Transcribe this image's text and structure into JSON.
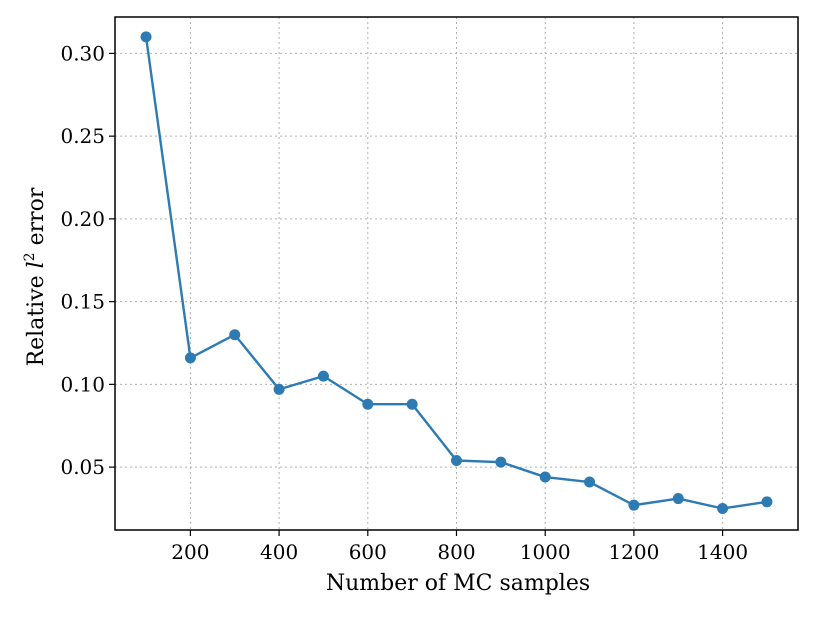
{
  "chart_data": {
    "type": "line",
    "title": "",
    "xlabel": "Number of MC samples",
    "ylabel_prefix": "Relative ",
    "ylabel_symbol": "l",
    "ylabel_sup": "2",
    "ylabel_suffix": " error",
    "xlim": [
      30,
      1570
    ],
    "ylim": [
      0.012,
      0.322
    ],
    "xticks": [
      200,
      400,
      600,
      800,
      1000,
      1200,
      1400
    ],
    "yticks": [
      0.05,
      0.1,
      0.15,
      0.2,
      0.25,
      0.3
    ],
    "ytick_labels": [
      "0.05",
      "0.10",
      "0.15",
      "0.20",
      "0.25",
      "0.30"
    ],
    "grid": true,
    "color": "#2e7bb3",
    "series": [
      {
        "x": [
          100,
          200,
          300,
          400,
          500,
          600,
          700,
          800,
          900,
          1000,
          1100,
          1200,
          1300,
          1400,
          1500
        ],
        "values": [
          0.31,
          0.116,
          0.13,
          0.097,
          0.105,
          0.088,
          0.088,
          0.054,
          0.053,
          0.044,
          0.041,
          0.027,
          0.031,
          0.025,
          0.029
        ]
      }
    ]
  }
}
